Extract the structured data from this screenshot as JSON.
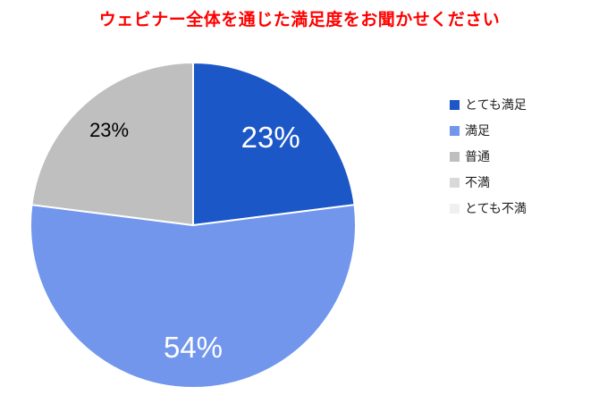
{
  "chart_data": {
    "type": "pie",
    "title": "ウェビナー全体を通じた満足度をお聞かせください",
    "title_color": "#ff0000",
    "categories": [
      "とても満足",
      "満足",
      "普通",
      "不満",
      "とても不満"
    ],
    "values": [
      23,
      54,
      23,
      0,
      0
    ],
    "colors": [
      "#1c57c7",
      "#7196ec",
      "#bfbfbf",
      "#d9d9d9",
      "#f0f0f0"
    ],
    "legend_position": "right",
    "start_angle_deg": 0,
    "direction": "clockwise",
    "data_labels": [
      {
        "text": "23%",
        "color": "#ffffff",
        "size": 33,
        "rf": 0.72
      },
      {
        "text": "54%",
        "color": "#ffffff",
        "size": 33,
        "rf": 0.75
      },
      {
        "text": "23%",
        "color": "#000000",
        "size": 22,
        "rf": 0.78
      }
    ]
  }
}
